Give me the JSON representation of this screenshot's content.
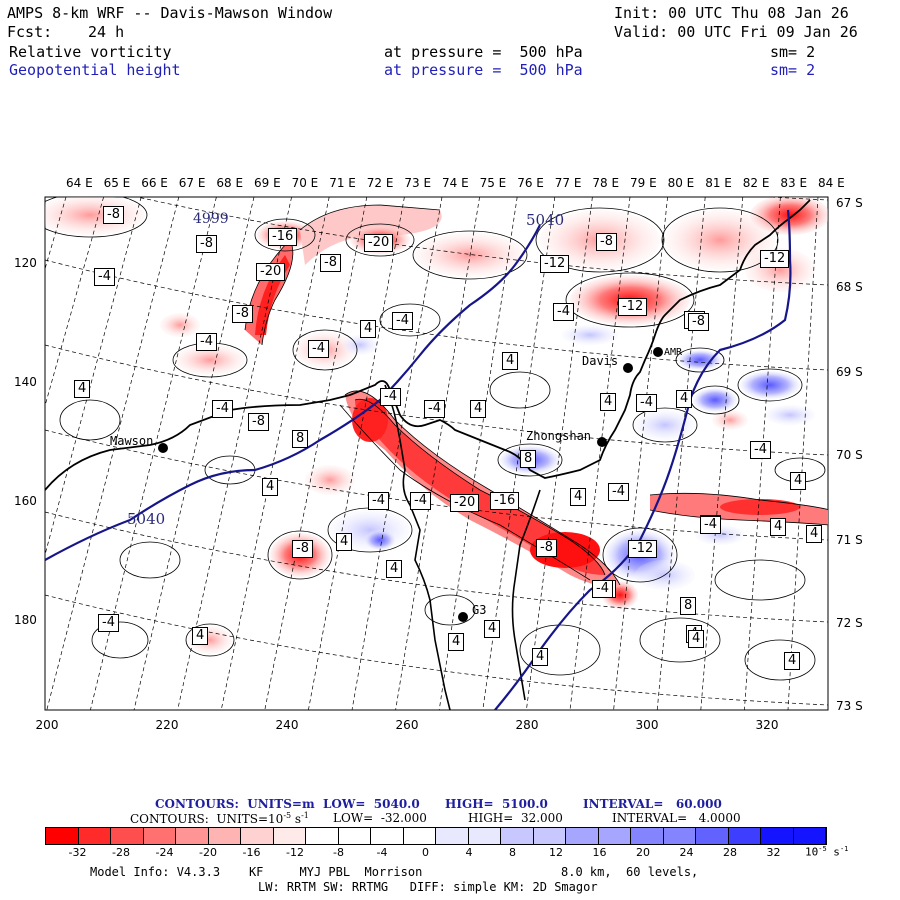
{
  "header": {
    "title": "AMPS 8-km WRF -- Davis-Mawson Window",
    "init": "Init: 00 UTC Thu 08 Jan 26",
    "fcst_label": "Fcst:",
    "fcst_value": "24 h",
    "valid": "Valid: 00 UTC Fri 09 Jan 26",
    "field1": "Relative vorticity",
    "field1_level": "at pressure =  500 hPa",
    "field1_sm": "sm= 2",
    "field2": "Geopotential height",
    "field2_level": "at pressure =  500 hPa",
    "field2_sm": "sm= 2"
  },
  "map": {
    "lon_labels": [
      "64 E",
      "65 E",
      "66 E",
      "67 E",
      "68 E",
      "69 E",
      "70 E",
      "71 E",
      "72 E",
      "73 E",
      "74 E",
      "75 E",
      "76 E",
      "77 E",
      "78 E",
      "79 E",
      "80 E",
      "81 E",
      "82 E",
      "83 E",
      "84 E"
    ],
    "lat_labels": [
      "67 S",
      "68 S",
      "69 S",
      "70 S",
      "71 S",
      "72 S",
      "73 S"
    ],
    "y_ticks": [
      "120",
      "140",
      "160",
      "180"
    ],
    "x_ticks": [
      "200",
      "220",
      "240",
      "260",
      "280",
      "300",
      "320"
    ],
    "stations": [
      {
        "name": "Mawson"
      },
      {
        "name": "Davis"
      },
      {
        "name": "Zhongshan"
      },
      {
        "name": "G3"
      },
      {
        "name": "AMR"
      }
    ],
    "height_labels": [
      "4999",
      "5040",
      "5040"
    ],
    "vort_labels": [
      "-8",
      "-8",
      "-16",
      "-20",
      "-8",
      "-20",
      "-12",
      "-8",
      "-4",
      "-8",
      "-4",
      "-4",
      "-12",
      "-8",
      "-4",
      "-4",
      "4",
      "-4",
      "4",
      "-8",
      "4",
      "-4",
      "-4",
      "8",
      "4",
      "8",
      "-4",
      "4",
      "4",
      "-16",
      "-20",
      "-4",
      "-8",
      "8",
      "-12",
      "-4",
      "4",
      "8",
      "-4",
      "-4",
      "4",
      "4",
      "4",
      "4",
      "-8",
      "-4",
      "4",
      "4",
      "4",
      "4",
      "4",
      "-4",
      "4",
      "4",
      "4",
      "-4",
      "-12",
      "-8",
      "-4",
      "4"
    ]
  },
  "legend": {
    "contours_line1_a": "CONTOURS:  UNITS=m  LOW=  5040.0",
    "contours_line1_b": "HIGH=  5100.0",
    "contours_line1_c": "INTERVAL=   60.000",
    "contours_line2_a": "CONTOURS:  UNITS=10",
    "contours_line2_exp": "-5",
    "contours_line2_unit": " s",
    "contours_line2_unit_exp": "-1",
    "contours_line2_b": "LOW=  -32.000",
    "contours_line2_c": "HIGH=  32.000",
    "contours_line2_d": "INTERVAL=   4.0000",
    "colorbar_labels": [
      "-32",
      "-28",
      "-24",
      "-20",
      "-16",
      "-12",
      "-8",
      "-4",
      "0",
      "4",
      "8",
      "12",
      "16",
      "20",
      "24",
      "28",
      "32"
    ],
    "colorbar_unit": "10",
    "colorbar_unit_exp": "-5",
    "colorbar_unit_tail": " s",
    "colorbar_unit_tail_exp": "-1",
    "colors": [
      "#ff0000",
      "#ff2a2a",
      "#ff4e4e",
      "#ff7070",
      "#ff9494",
      "#ffb4b4",
      "#ffd2d2",
      "#ffeaea",
      "#ffffff",
      "#ffffff",
      "#e8e8ff",
      "#c8c8ff",
      "#a6a6ff",
      "#8484ff",
      "#6262ff",
      "#3e3eff",
      "#1414ff"
    ]
  },
  "footer": {
    "line1_a": "Model Info: V4.3.3    KF     MYJ PBL  Morrison",
    "line1_b": "8.0 km,  60 levels,",
    "line2": "LW: RRTM SW: RRTMG   DIFF: simple KM: 2D Smagor"
  }
}
